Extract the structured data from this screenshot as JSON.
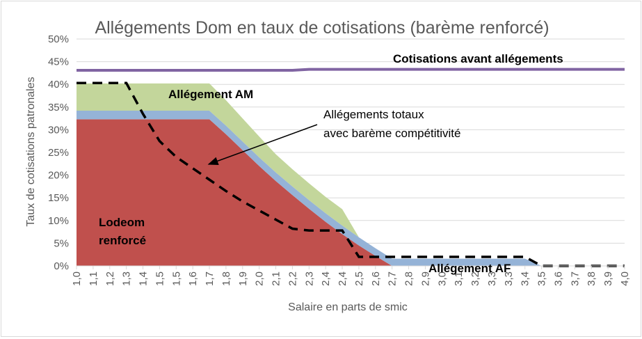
{
  "chart_data": {
    "type": "area",
    "stacked": true,
    "title": "Allégements Dom en taux de cotisations (barème renforcé)",
    "xlabel": "Salaire en parts de smic",
    "ylabel": "Taux de cotisations patronales",
    "ylim": [
      0,
      50
    ],
    "yticks": [
      "0%",
      "5%",
      "10%",
      "15%",
      "20%",
      "25%",
      "30%",
      "35%",
      "40%",
      "45%",
      "50%"
    ],
    "grid": true,
    "categories": [
      "1,0",
      "1,1",
      "1,2",
      "1,3",
      "1,4",
      "1,5",
      "1,5",
      "1,6",
      "1,7",
      "1,8",
      "1,9",
      "2,0",
      "2,1",
      "2,2",
      "2,3",
      "2,4",
      "2,4",
      "2,5",
      "2,6",
      "2,7",
      "2,8",
      "2,9",
      "3,0",
      "3,1",
      "3,2",
      "3,3",
      "3,3",
      "3,4",
      "3,5",
      "3,6",
      "3,7",
      "3,8",
      "3,9",
      "4,0"
    ],
    "series": [
      {
        "name": "Lodeom renforcé",
        "kind": "area",
        "color": "#c0504d",
        "values": [
          32.3,
          32.3,
          32.3,
          32.3,
          32.3,
          32.3,
          32.3,
          32.3,
          32.3,
          29,
          25.5,
          22,
          18.7,
          15.6,
          12.6,
          9.7,
          7,
          4.5,
          2.2,
          0,
          0,
          0,
          0,
          0,
          0,
          0,
          0,
          0,
          0,
          0,
          0,
          0,
          0,
          0
        ]
      },
      {
        "name": "Allégement AF",
        "kind": "area",
        "color": "#95b3d7",
        "values": [
          1.9,
          1.9,
          1.9,
          1.9,
          1.9,
          1.9,
          1.9,
          1.9,
          1.9,
          1.9,
          1.9,
          1.9,
          1.9,
          1.9,
          1.9,
          1.9,
          1.9,
          1.8,
          1.7,
          1.6,
          1.6,
          1.6,
          1.6,
          1.6,
          1.6,
          1.6,
          1.6,
          1.6,
          0,
          0,
          0,
          0,
          0,
          0
        ]
      },
      {
        "name": "Allégement AM",
        "kind": "area",
        "color": "#c3d69b",
        "values": [
          6,
          6,
          6,
          6,
          6,
          6,
          6,
          6,
          6,
          5.6,
          5.1,
          4.6,
          4,
          3.8,
          3.7,
          3.6,
          3.6,
          0,
          0,
          0,
          0,
          0,
          0,
          0,
          0,
          0,
          0,
          0,
          0,
          0,
          0,
          0,
          0,
          0
        ]
      },
      {
        "name": "Cotisations avant allégements",
        "kind": "line",
        "color": "#8064a2",
        "values": [
          43.1,
          43.1,
          43.1,
          43.1,
          43.1,
          43.1,
          43.1,
          43.1,
          43.1,
          43.1,
          43.1,
          43.1,
          43.1,
          43.1,
          43.3,
          43.3,
          43.3,
          43.3,
          43.3,
          43.3,
          43.3,
          43.3,
          43.3,
          43.3,
          43.3,
          43.3,
          43.3,
          43.3,
          43.3,
          43.3,
          43.3,
          43.3,
          43.3,
          43.3
        ]
      },
      {
        "name": "Allégements totaux avec barème compétitivité",
        "kind": "dashed-line",
        "color": "#000000",
        "values": [
          40.3,
          40.3,
          40.3,
          40.3,
          33.5,
          27.5,
          24,
          21.5,
          19,
          16.5,
          14.2,
          12.2,
          10.2,
          8.2,
          7.8,
          7.8,
          7.8,
          2,
          2,
          2,
          2,
          2,
          2,
          2,
          2,
          2,
          2,
          2,
          0,
          0,
          0,
          0,
          0,
          0
        ]
      }
    ],
    "annotations": {
      "lodeom_line1": "Lodeom",
      "lodeom_line2": "renforcé",
      "am": "Allégement AM",
      "af": "Allégement AF",
      "cotisations": "Cotisations avant allégements",
      "totaux_line1": "Allégements totaux",
      "totaux_line2": "avec barème compétitivité"
    }
  }
}
